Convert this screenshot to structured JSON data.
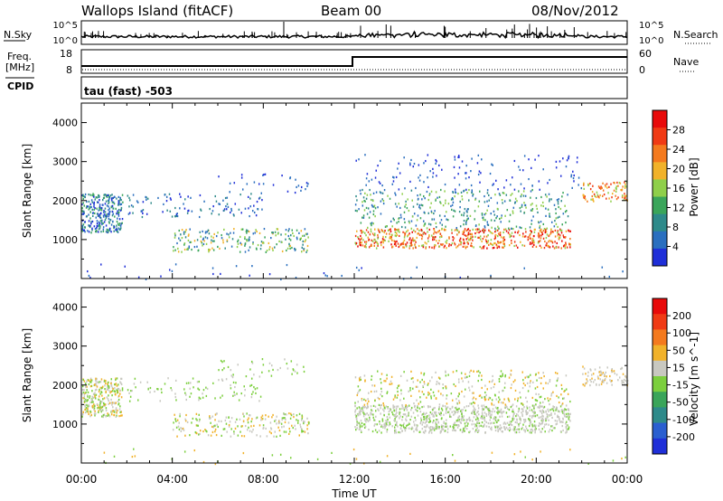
{
  "header": {
    "station": "Wallops Island (fitACF)",
    "beam": "Beam 00",
    "date": "08/Nov/2012"
  },
  "noise_panel": {
    "left_label": "N.Sky",
    "right_label": "N.Search",
    "tick_top": "10^5",
    "tick_bottom": "10^0"
  },
  "freq_panel": {
    "label_line1": "Freq.",
    "label_line2": "[MHz]",
    "tick_top": "18",
    "tick_bottom": "8",
    "right_label": "Nave",
    "right_tick_top": "60",
    "right_tick_bottom": "0"
  },
  "cpid_panel": {
    "label": "CPID",
    "value": "tau (fast) -503"
  },
  "colors": {
    "power": [
      "#1f2fd8",
      "#2a6fbf",
      "#2e8a8a",
      "#3aa55a",
      "#8fcf4a",
      "#f1b22a",
      "#f47a1e",
      "#f03a14",
      "#e80a0a"
    ],
    "velocity": [
      "#1f2fd8",
      "#2a5fd0",
      "#2e8a8a",
      "#3aa55a",
      "#7ccf3e",
      "#c8c8c0",
      "#f1b22a",
      "#f47a1e",
      "#f03a14",
      "#e80a0a"
    ]
  },
  "chart_data": [
    {
      "type": "heatmap",
      "title": "Power",
      "xlabel": "Time UT",
      "ylabel": "Slant Range [km]",
      "x_ticks": [
        "00:00",
        "04:00",
        "08:00",
        "12:00",
        "16:00",
        "20:00",
        "00:00"
      ],
      "y_ticks": [
        "1000",
        "2000",
        "3000",
        "4000"
      ],
      "ylim": [
        0,
        4500
      ],
      "colorbar": {
        "label": "Power [dB]",
        "ticks": [
          "4",
          "8",
          "12",
          "16",
          "20",
          "24",
          "28"
        ]
      }
    },
    {
      "type": "heatmap",
      "title": "Velocity",
      "xlabel": "Time UT",
      "ylabel": "Slant Range [km]",
      "x_ticks": [
        "00:00",
        "04:00",
        "08:00",
        "12:00",
        "16:00",
        "20:00",
        "00:00"
      ],
      "y_ticks": [
        "1000",
        "2000",
        "3000",
        "4000"
      ],
      "ylim": [
        0,
        4500
      ],
      "colorbar": {
        "label": "Velocity [m s^-1]",
        "ticks": [
          "200",
          "100",
          "50",
          "15",
          "-15",
          "-50",
          "-100",
          "-200"
        ]
      }
    }
  ],
  "footer": {
    "time_label": "Time UT"
  }
}
